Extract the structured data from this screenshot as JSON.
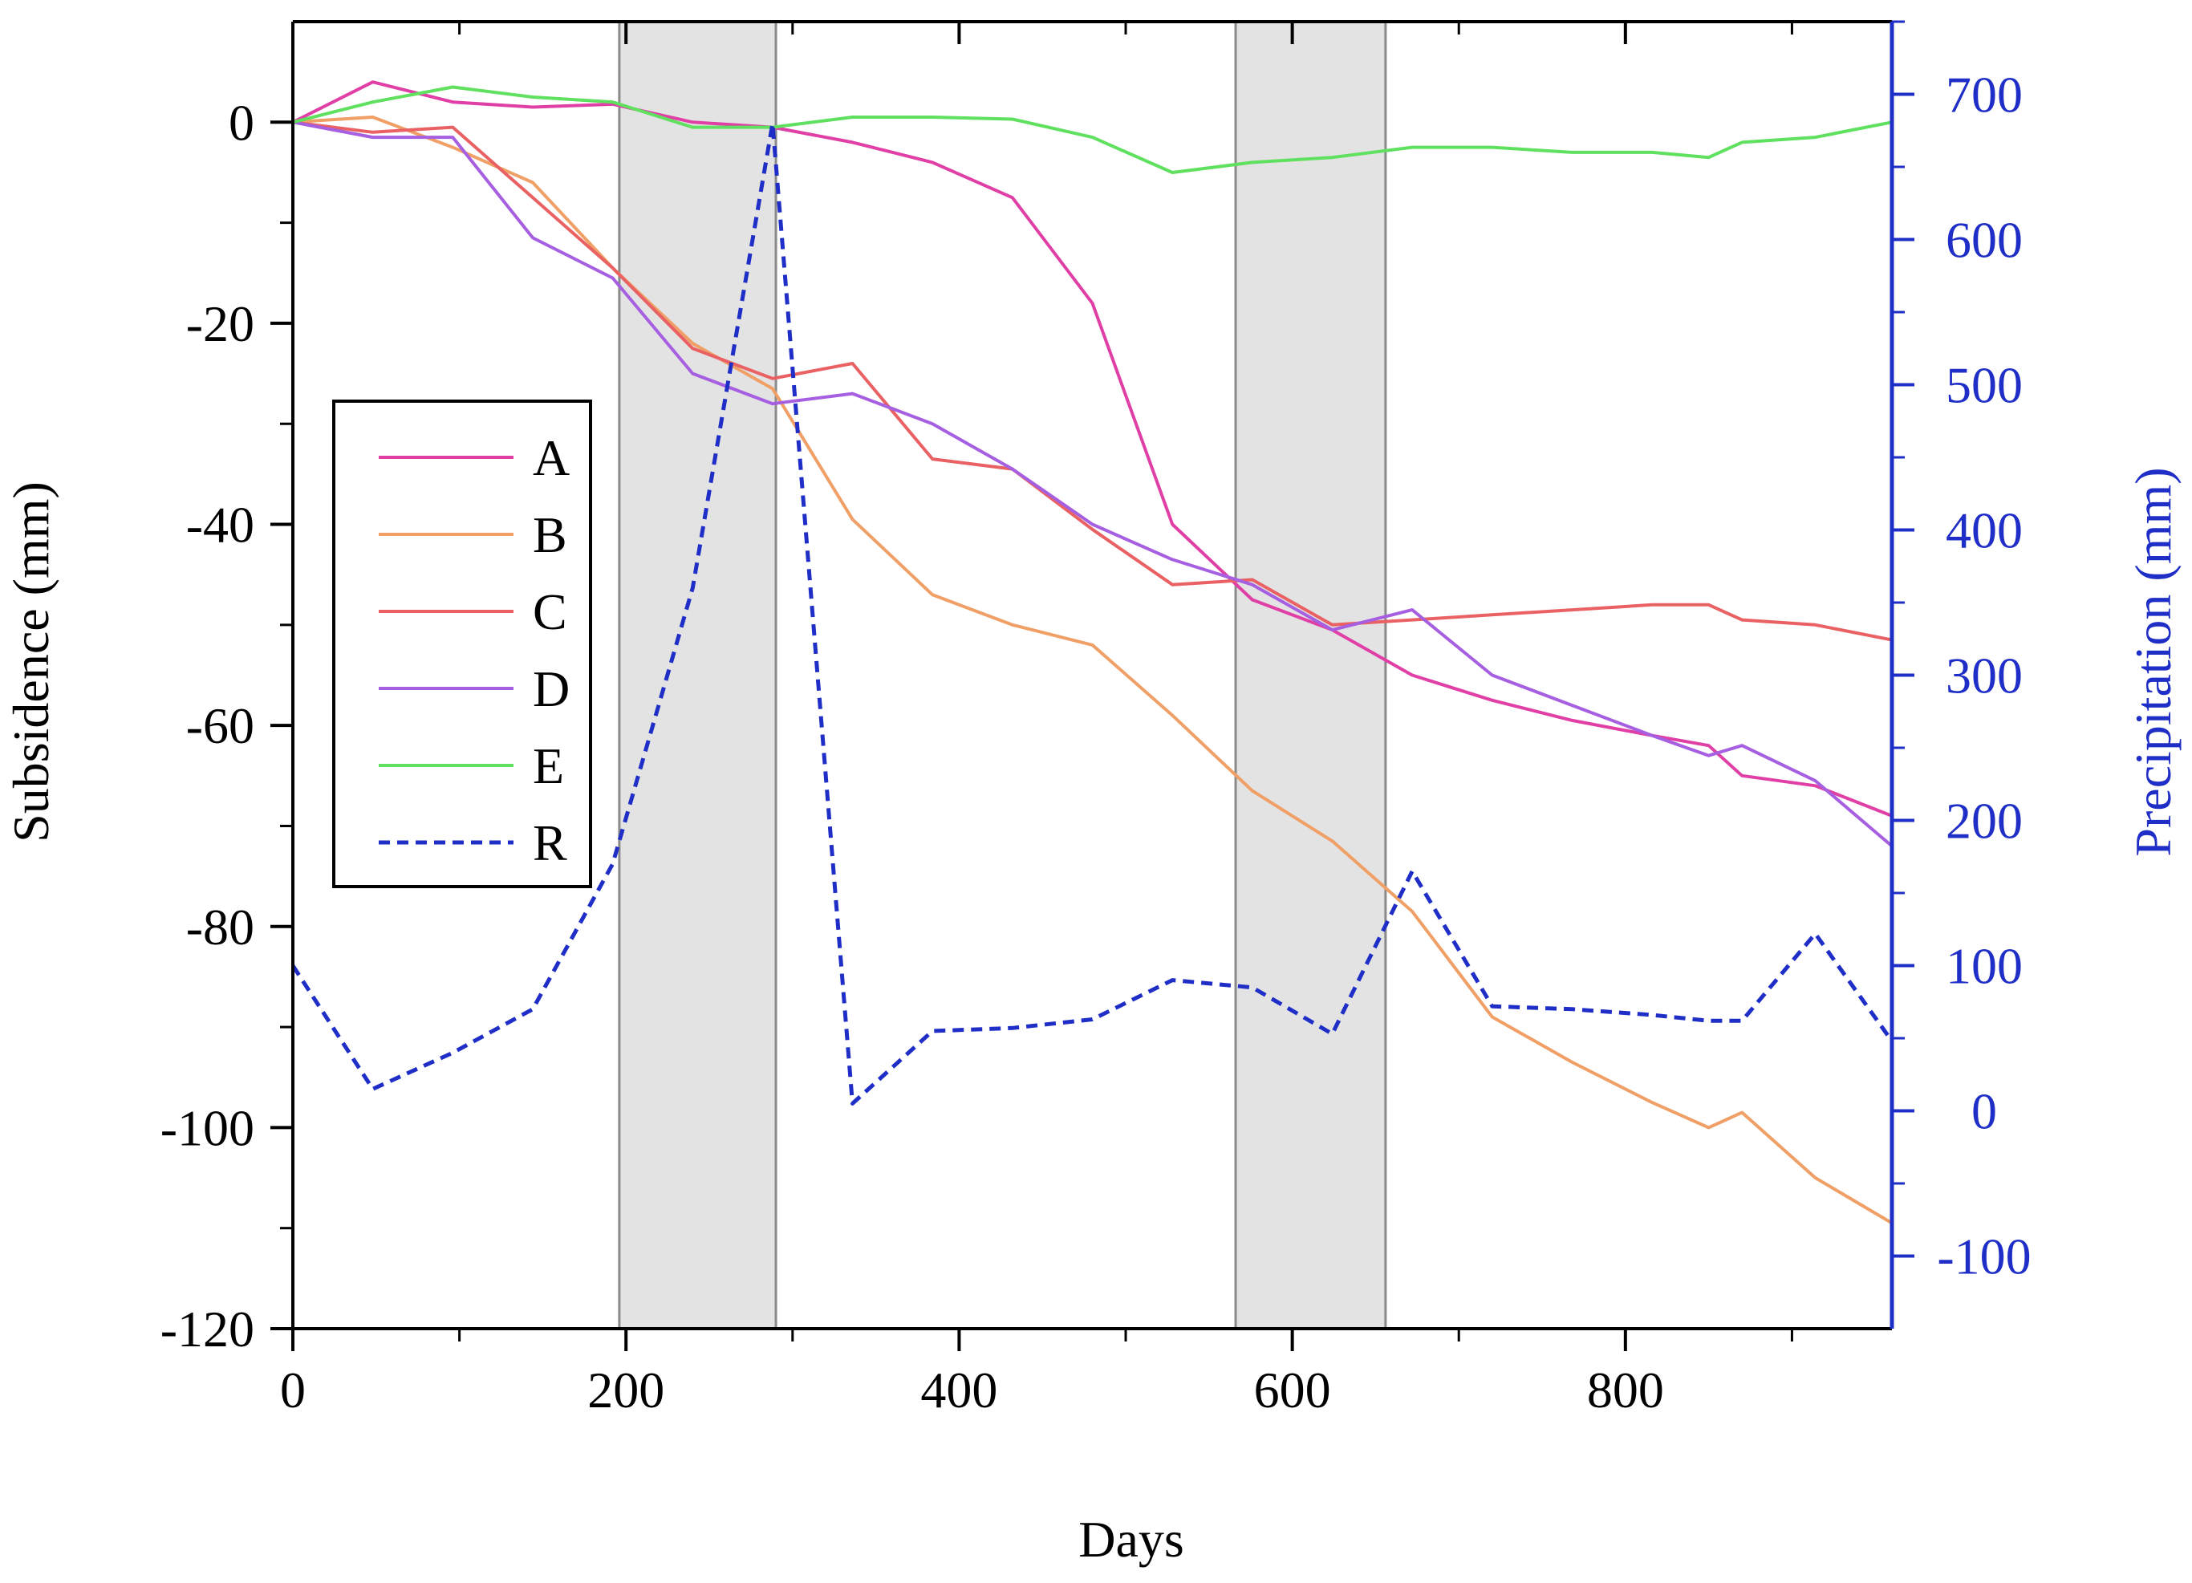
{
  "chart_data": {
    "type": "line",
    "title": "",
    "xlabel": "Days",
    "ylabel": "Subsidence (mm)",
    "y2label": "Precipitation (mm)",
    "xlim": [
      0,
      960
    ],
    "ylim": [
      -120,
      10
    ],
    "y2lim": [
      -150,
      750
    ],
    "xticks": [
      0,
      200,
      400,
      600,
      800
    ],
    "yticks": [
      0,
      -20,
      -40,
      -60,
      -80,
      -100,
      -120
    ],
    "y2ticks": [
      700,
      600,
      500,
      400,
      300,
      200,
      100,
      0,
      -100
    ],
    "x_tick_labels": [
      "0",
      "200",
      "400",
      "600",
      "800"
    ],
    "y_tick_labels": [
      "0",
      "-20",
      "-40",
      "-60",
      "-80",
      "-100",
      "-120"
    ],
    "y2_tick_labels": [
      "700",
      "600",
      "500",
      "400",
      "300",
      "200",
      "100",
      "0",
      "-100"
    ],
    "shaded_regions": [
      [
        196,
        290
      ],
      [
        566,
        656
      ]
    ],
    "legend_position": "left",
    "series": [
      {
        "name": "A",
        "axis": "left",
        "color": "#e03fa6",
        "dash": false,
        "x": [
          0,
          48,
          96,
          144,
          192,
          240,
          288,
          336,
          384,
          432,
          480,
          528,
          576,
          624,
          672,
          720,
          768,
          816,
          850,
          870,
          914,
          960
        ],
        "y": [
          0,
          4,
          2,
          1.5,
          1.8,
          0,
          -0.5,
          -2,
          -4,
          -7.5,
          -18,
          -40,
          -47.5,
          -50.5,
          -55,
          -57.5,
          -59.5,
          -61,
          -62,
          -65,
          -66,
          -69
        ]
      },
      {
        "name": "B",
        "axis": "left",
        "color": "#f0a066",
        "dash": false,
        "x": [
          0,
          48,
          96,
          144,
          192,
          240,
          288,
          336,
          384,
          432,
          480,
          528,
          576,
          624,
          672,
          720,
          768,
          816,
          850,
          870,
          914,
          960
        ],
        "y": [
          0,
          0.5,
          -2.5,
          -6,
          -14.5,
          -22,
          -26.5,
          -39.5,
          -47,
          -50,
          -52,
          -59,
          -66.5,
          -71.5,
          -78.5,
          -89,
          -93.5,
          -97.5,
          -100,
          -98.5,
          -105,
          -109.5
        ]
      },
      {
        "name": "C",
        "axis": "left",
        "color": "#ea6163",
        "dash": false,
        "x": [
          0,
          48,
          96,
          144,
          192,
          240,
          288,
          336,
          384,
          432,
          480,
          528,
          576,
          624,
          672,
          720,
          768,
          816,
          850,
          870,
          914,
          960
        ],
        "y": [
          0,
          -1,
          -0.5,
          -7.5,
          -14.5,
          -22.5,
          -25.5,
          -24,
          -33.5,
          -34.5,
          -40.5,
          -46,
          -45.5,
          -50,
          -49.5,
          -49,
          -48.5,
          -48,
          -48,
          -49.5,
          -50,
          -51.5
        ]
      },
      {
        "name": "D",
        "axis": "left",
        "color": "#a55fe0",
        "dash": false,
        "x": [
          0,
          48,
          96,
          144,
          192,
          240,
          288,
          336,
          384,
          432,
          480,
          528,
          576,
          624,
          672,
          720,
          768,
          816,
          850,
          870,
          914,
          960
        ],
        "y": [
          0,
          -1.5,
          -1.5,
          -11.5,
          -15.5,
          -25,
          -28,
          -27,
          -30,
          -34.5,
          -40,
          -43.5,
          -46,
          -50.5,
          -48.5,
          -55,
          -58,
          -61,
          -63,
          -62,
          -65.5,
          -72
        ]
      },
      {
        "name": "E",
        "axis": "left",
        "color": "#5fe05f",
        "dash": false,
        "x": [
          0,
          48,
          96,
          144,
          192,
          240,
          288,
          336,
          384,
          432,
          480,
          528,
          576,
          624,
          672,
          720,
          768,
          816,
          850,
          870,
          914,
          960
        ],
        "y": [
          0,
          2,
          3.5,
          2.5,
          2,
          -0.5,
          -0.5,
          0.5,
          0.5,
          0.3,
          -1.5,
          -5,
          -4,
          -3.5,
          -2.5,
          -2.5,
          -3,
          -3,
          -3.5,
          -2,
          -1.5,
          0
        ]
      },
      {
        "name": "R",
        "axis": "right",
        "color": "#1f2ec6",
        "dash": true,
        "x": [
          0,
          48,
          96,
          144,
          192,
          240,
          288,
          336,
          384,
          432,
          480,
          528,
          576,
          624,
          672,
          720,
          768,
          816,
          850,
          870,
          914,
          960
        ],
        "y": [
          100,
          15,
          40,
          70,
          170,
          360,
          680,
          5,
          55,
          57,
          63,
          90,
          85,
          53,
          165,
          72,
          70,
          66,
          62,
          62,
          122,
          48
        ]
      }
    ]
  }
}
